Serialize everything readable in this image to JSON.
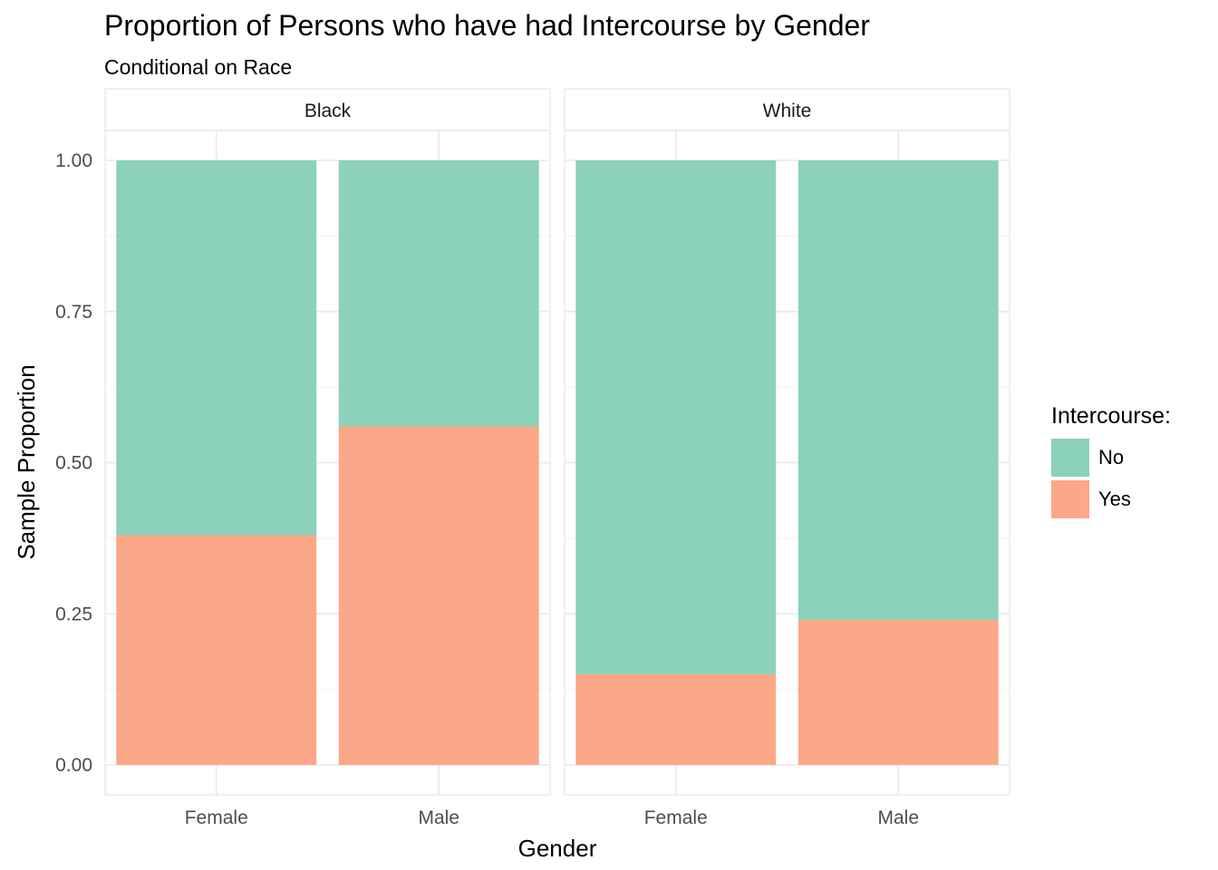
{
  "chart_data": {
    "type": "bar",
    "stacked": true,
    "title": "Proportion of Persons who have had Intercourse by Gender",
    "subtitle": "Conditional on Race",
    "xlabel": "Gender",
    "ylabel": "Sample Proportion",
    "ylim": [
      0,
      1
    ],
    "yticks": [
      "0.00",
      "0.25",
      "0.50",
      "0.75",
      "1.00"
    ],
    "grid": true,
    "legend": {
      "title": "Intercourse:",
      "position": "right",
      "entries": [
        {
          "label": "No",
          "color": "#8cd1bb"
        },
        {
          "label": "Yes",
          "color": "#fba888"
        }
      ]
    },
    "categories": [
      "Female",
      "Male"
    ],
    "facets": [
      {
        "label": "Black",
        "series": [
          {
            "name": "Yes",
            "values": [
              0.38,
              0.56
            ]
          },
          {
            "name": "No",
            "values": [
              0.62,
              0.44
            ]
          }
        ]
      },
      {
        "label": "White",
        "series": [
          {
            "name": "Yes",
            "values": [
              0.15,
              0.24
            ]
          },
          {
            "name": "No",
            "values": [
              0.85,
              0.76
            ]
          }
        ]
      }
    ]
  }
}
